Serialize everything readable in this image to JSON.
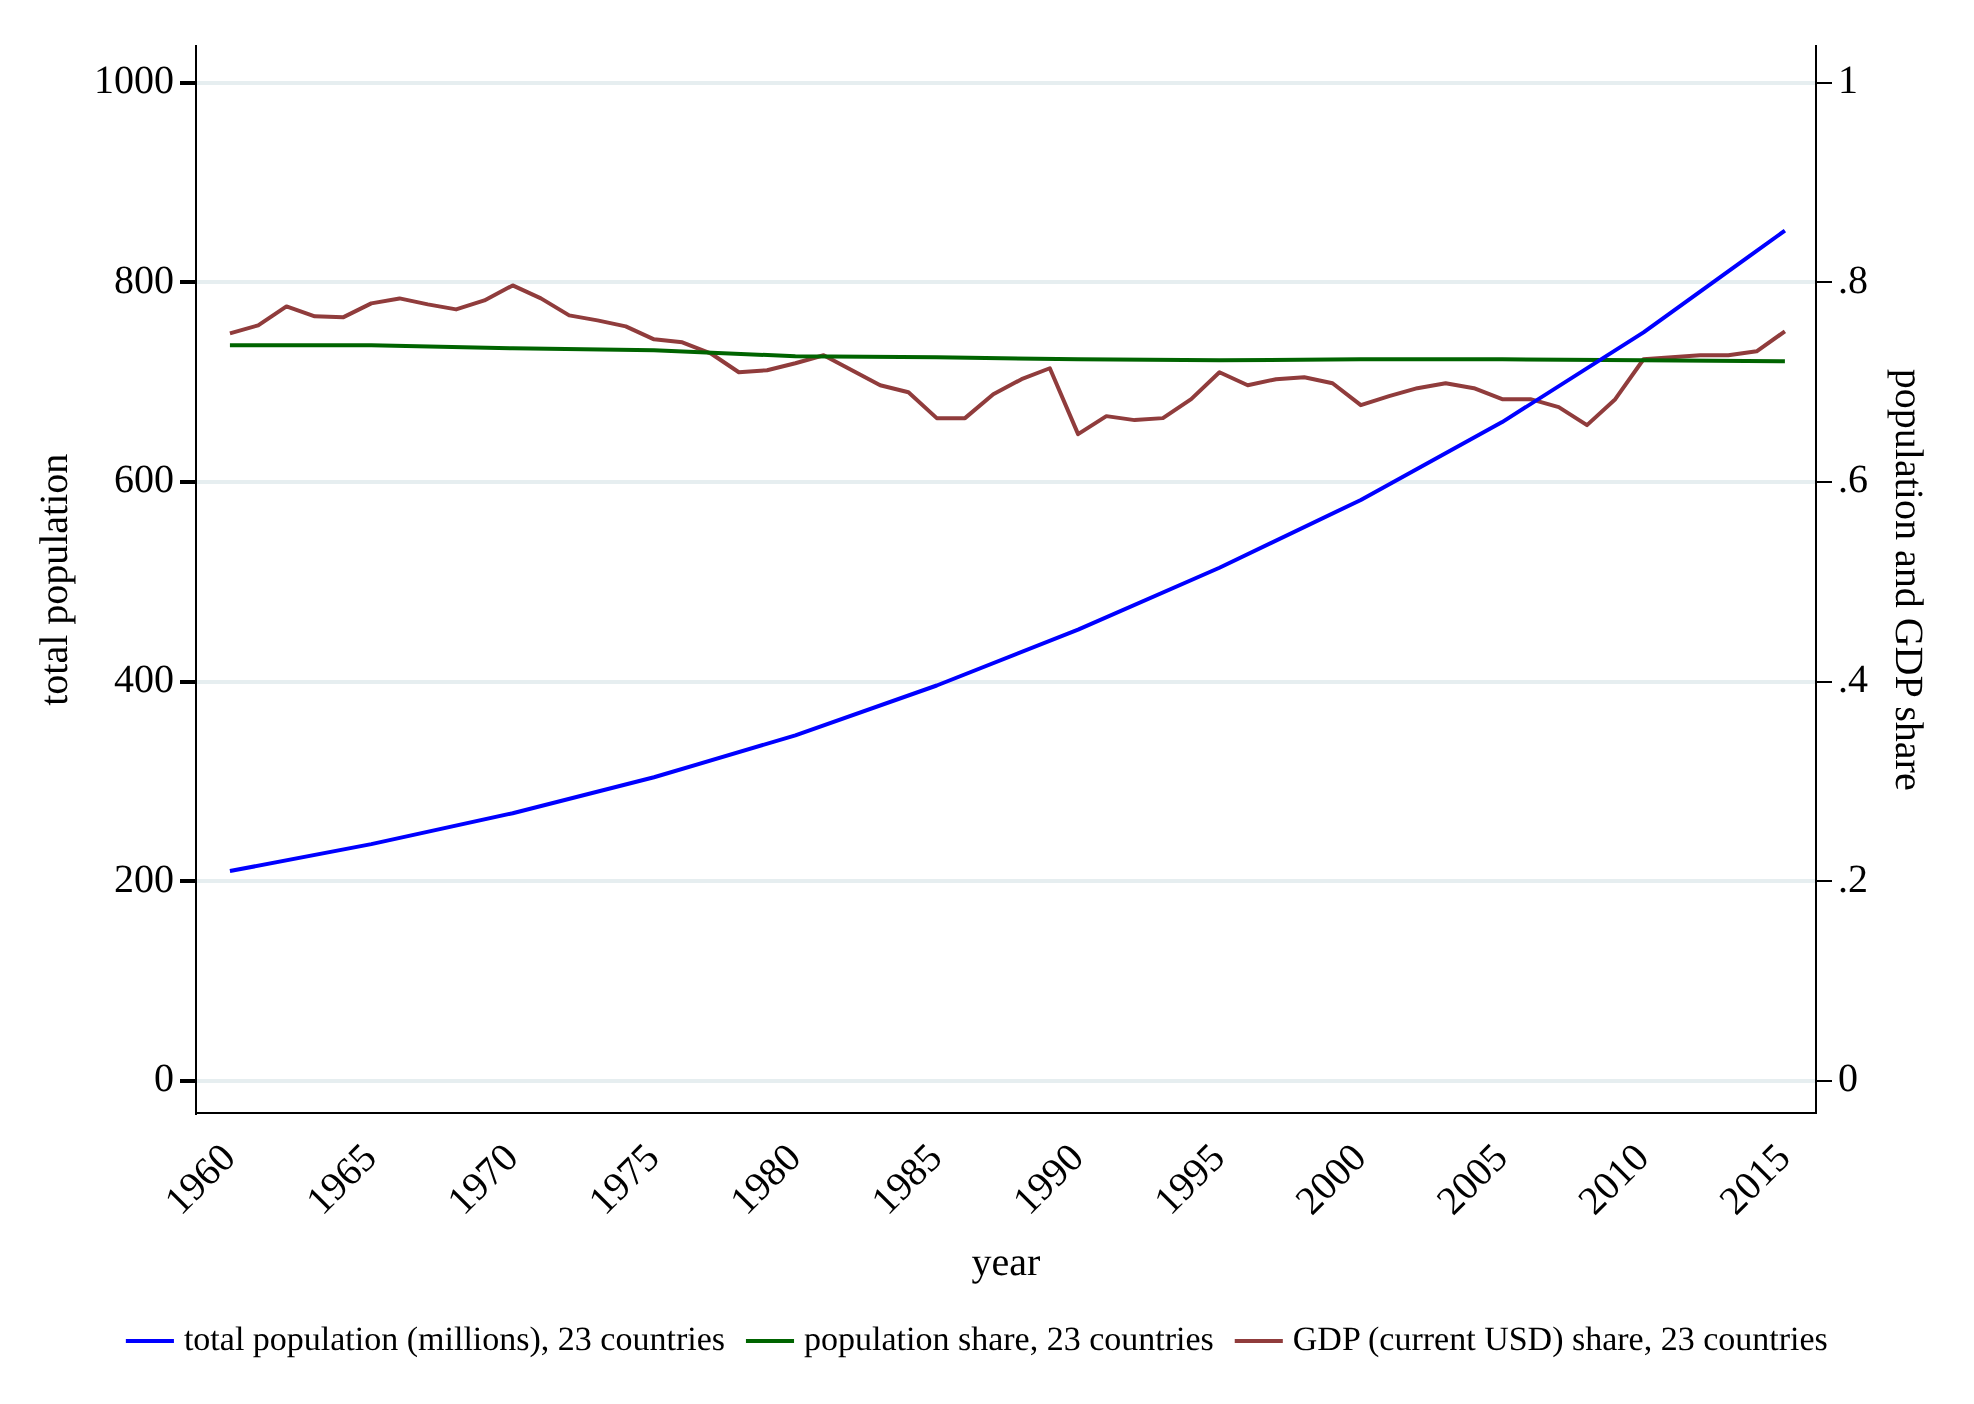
{
  "chart_data": {
    "type": "line",
    "xlabel": "year",
    "ylabel": "total population",
    "y2label": "population and GDP share",
    "xlim": [
      1958.8,
      2016.1
    ],
    "xticks": [
      1960,
      1965,
      1970,
      1975,
      1980,
      1985,
      1990,
      1995,
      2000,
      2005,
      2010,
      2015
    ],
    "ylim": [
      -33,
      1037
    ],
    "yticks": [
      0,
      200,
      400,
      600,
      800,
      1000
    ],
    "y2lim": [
      -0.033,
      1.037
    ],
    "y2ticks": [
      {
        "value": 0,
        "label": "0"
      },
      {
        "value": 0.2,
        "label": ".2"
      },
      {
        "value": 0.4,
        "label": ".4"
      },
      {
        "value": 0.6,
        "label": ".6"
      },
      {
        "value": 0.8,
        "label": ".8"
      },
      {
        "value": 1,
        "label": "1"
      }
    ],
    "grid": "y",
    "legend": "bottom",
    "marker": "none",
    "line_style": "solid",
    "series": [
      {
        "name": "total population (millions), 23 countries",
        "color": "#0000ff",
        "x": [
          1960,
          1965,
          1970,
          1975,
          1980,
          1985,
          1990,
          1995,
          2000,
          2005,
          2010,
          2015
        ],
        "values": [
          210,
          237,
          268,
          304,
          346,
          396,
          452,
          514,
          582,
          660,
          750,
          852
        ]
      },
      {
        "name": "population share, 23 countries",
        "color": "#006400",
        "axis": "y2",
        "x": [
          1960,
          1965,
          1970,
          1975,
          1980,
          1985,
          1990,
          1995,
          2000,
          2005,
          2010,
          2015
        ],
        "values": [
          0.737,
          0.737,
          0.734,
          0.732,
          0.726,
          0.725,
          0.723,
          0.722,
          0.723,
          0.723,
          0.722,
          0.721
        ]
      },
      {
        "name": "GDP (current USD) share, 23 countries",
        "color": "#903c3c",
        "axis": "y2",
        "x": [
          1960,
          1961,
          1962,
          1963,
          1964,
          1965,
          1966,
          1967,
          1968,
          1969,
          1970,
          1971,
          1972,
          1973,
          1974,
          1975,
          1976,
          1977,
          1978,
          1979,
          1980,
          1981,
          1982,
          1983,
          1984,
          1985,
          1986,
          1987,
          1988,
          1989,
          1990,
          1991,
          1992,
          1993,
          1994,
          1995,
          1996,
          1997,
          1998,
          1999,
          2000,
          2001,
          2002,
          2003,
          2004,
          2005,
          2006,
          2007,
          2008,
          2009,
          2010,
          2011,
          2012,
          2013,
          2014,
          2015
        ],
        "values": [
          0.749,
          0.757,
          0.776,
          0.766,
          0.765,
          0.779,
          0.784,
          0.778,
          0.773,
          0.782,
          0.797,
          0.784,
          0.767,
          0.762,
          0.756,
          0.743,
          0.74,
          0.729,
          0.71,
          0.712,
          0.719,
          0.727,
          0.712,
          0.697,
          0.69,
          0.664,
          0.664,
          0.688,
          0.703,
          0.714,
          0.648,
          0.666,
          0.662,
          0.664,
          0.683,
          0.71,
          0.697,
          0.703,
          0.705,
          0.699,
          0.677,
          0.686,
          0.694,
          0.699,
          0.694,
          0.683,
          0.683,
          0.675,
          0.657,
          0.683,
          0.723,
          0.725,
          0.727,
          0.727,
          0.731,
          0.751
        ]
      }
    ]
  }
}
